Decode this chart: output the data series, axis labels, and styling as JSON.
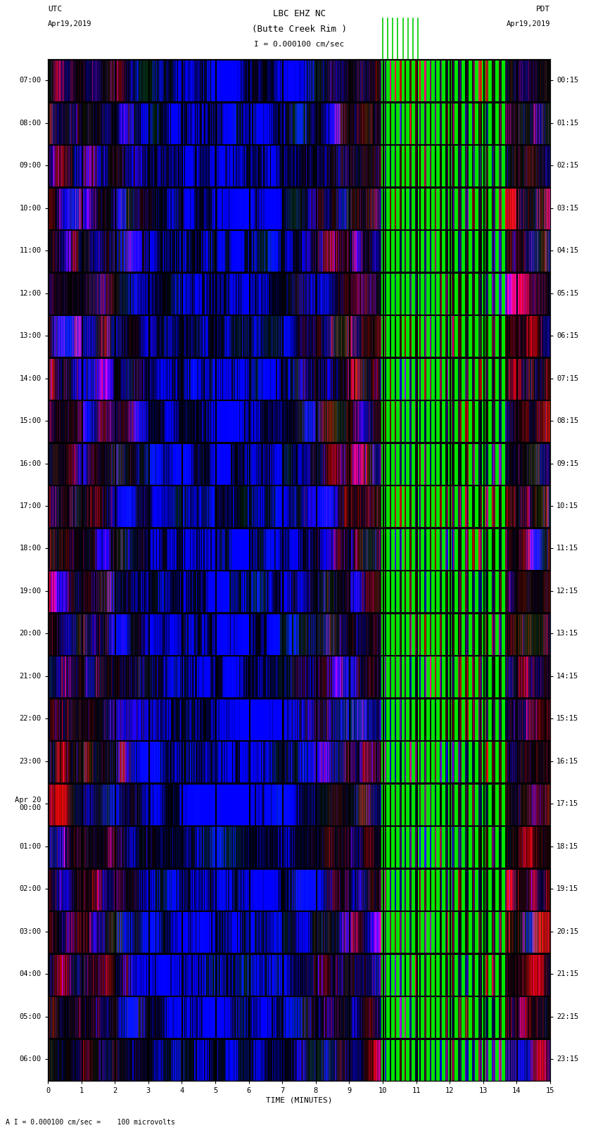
{
  "title_line1": "LBC EHZ NC",
  "title_line2": "(Butte Creek Rim )",
  "scale_label": "I = 0.000100 cm/sec",
  "bottom_label": "A I = 0.000100 cm/sec =    100 microvolts",
  "utc_label": "UTC",
  "utc_date": "Apr19,2019",
  "pdt_label": "PDT",
  "pdt_date": "Apr19,2019",
  "xlabel": "TIME (MINUTES)",
  "left_ticks_top": [
    "07:00",
    "08:00",
    "09:00",
    "10:00",
    "11:00",
    "12:00",
    "13:00",
    "14:00",
    "15:00",
    "16:00",
    "17:00",
    "18:00",
    "19:00",
    "20:00",
    "21:00",
    "22:00",
    "23:00",
    "Apr 20\n00:00",
    "01:00",
    "02:00",
    "03:00",
    "04:00",
    "05:00",
    "06:00"
  ],
  "right_ticks": [
    "00:15",
    "01:15",
    "02:15",
    "03:15",
    "04:15",
    "05:15",
    "06:15",
    "07:15",
    "08:15",
    "09:15",
    "10:15",
    "11:15",
    "12:15",
    "13:15",
    "14:15",
    "15:15",
    "16:15",
    "17:15",
    "18:15",
    "19:15",
    "20:15",
    "21:15",
    "22:15",
    "23:15"
  ],
  "n_rows": 24,
  "n_cols": 15,
  "fig_width": 8.5,
  "fig_height": 16.13,
  "title_fontsize": 9,
  "tick_fontsize": 7.5,
  "label_fontsize": 8
}
